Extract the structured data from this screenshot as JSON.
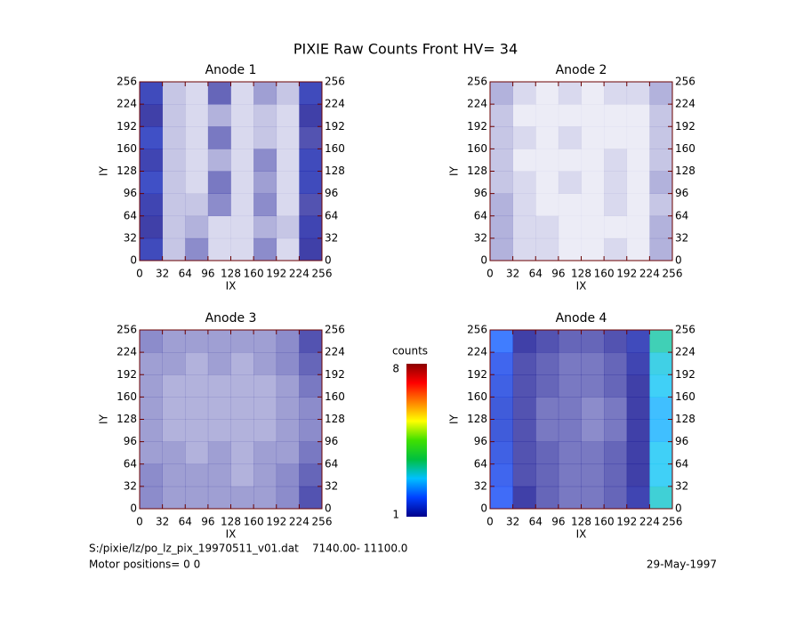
{
  "title": "PIXIE Raw Counts Front HV= 34",
  "footer": {
    "file": "S:/pixie/lz/po_lz_pix_19970511_v01.dat    7140.00- 11100.0",
    "motor": "Motor positions= 0 0",
    "date": "29-May-1997"
  },
  "colorbar": {
    "label": "counts",
    "lim": [
      1,
      8
    ],
    "ticks": [
      1,
      8
    ],
    "colors": [
      "#00008b",
      "#0040ff",
      "#00c0ff",
      "#00c040",
      "#40e000",
      "#ffff00",
      "#ff8000",
      "#ff0000",
      "#8b0000"
    ]
  },
  "chart_data": [
    {
      "type": "heatmap",
      "title": "Anode 1",
      "xlabel": "IX",
      "ylabel": "IY",
      "xlim": [
        0,
        256
      ],
      "ylim": [
        0,
        256
      ],
      "xticks": [
        0,
        32,
        64,
        96,
        128,
        160,
        192,
        224,
        256
      ],
      "yticks": [
        0,
        32,
        64,
        96,
        128,
        160,
        192,
        224,
        256
      ],
      "z": [
        [
          1.2,
          0.3,
          0.6,
          0.2,
          0.2,
          0.6,
          0.2,
          1.0
        ],
        [
          1.0,
          0.3,
          0.4,
          0.2,
          0.2,
          0.4,
          0.3,
          1.1
        ],
        [
          1.1,
          0.3,
          0.3,
          0.6,
          0.2,
          0.6,
          0.2,
          0.9
        ],
        [
          1.3,
          0.3,
          0.2,
          0.7,
          0.2,
          0.5,
          0.2,
          1.2
        ],
        [
          1.1,
          0.3,
          0.2,
          0.4,
          0.2,
          0.6,
          0.2,
          1.2
        ],
        [
          1.3,
          0.3,
          0.2,
          0.7,
          0.2,
          0.3,
          0.2,
          0.9
        ],
        [
          1.0,
          0.3,
          0.2,
          0.4,
          0.2,
          0.3,
          0.2,
          1.0
        ],
        [
          1.2,
          0.3,
          0.2,
          0.8,
          0.2,
          0.5,
          0.3,
          1.2
        ]
      ]
    },
    {
      "type": "heatmap",
      "title": "Anode 2",
      "xlabel": "IX",
      "ylabel": "IY",
      "xlim": [
        0,
        256
      ],
      "ylim": [
        0,
        256
      ],
      "xticks": [
        0,
        32,
        64,
        96,
        128,
        160,
        192,
        224,
        256
      ],
      "yticks": [
        0,
        32,
        64,
        96,
        128,
        160,
        192,
        224,
        256
      ],
      "z": [
        [
          0.4,
          0.2,
          0.2,
          0.1,
          0.1,
          0.2,
          0.1,
          0.4
        ],
        [
          0.4,
          0.2,
          0.2,
          0.1,
          0.1,
          0.1,
          0.1,
          0.4
        ],
        [
          0.4,
          0.2,
          0.1,
          0.1,
          0.1,
          0.2,
          0.1,
          0.3
        ],
        [
          0.3,
          0.2,
          0.1,
          0.2,
          0.1,
          0.2,
          0.1,
          0.4
        ],
        [
          0.3,
          0.1,
          0.1,
          0.1,
          0.1,
          0.2,
          0.1,
          0.3
        ],
        [
          0.3,
          0.2,
          0.1,
          0.2,
          0.1,
          0.1,
          0.1,
          0.3
        ],
        [
          0.3,
          0.1,
          0.1,
          0.1,
          0.1,
          0.1,
          0.1,
          0.3
        ],
        [
          0.4,
          0.2,
          0.1,
          0.2,
          0.1,
          0.2,
          0.2,
          0.4
        ]
      ]
    },
    {
      "type": "heatmap",
      "title": "Anode 3",
      "xlabel": "IX",
      "ylabel": "IY",
      "xlim": [
        0,
        256
      ],
      "ylim": [
        0,
        256
      ],
      "xticks": [
        0,
        32,
        64,
        96,
        128,
        160,
        192,
        224,
        256
      ],
      "yticks": [
        0,
        32,
        64,
        96,
        128,
        160,
        192,
        224,
        256
      ],
      "z": [
        [
          0.6,
          0.5,
          0.5,
          0.5,
          0.5,
          0.5,
          0.6,
          0.9
        ],
        [
          0.6,
          0.5,
          0.5,
          0.5,
          0.4,
          0.5,
          0.6,
          0.8
        ],
        [
          0.5,
          0.5,
          0.4,
          0.5,
          0.4,
          0.5,
          0.5,
          0.7
        ],
        [
          0.5,
          0.4,
          0.4,
          0.4,
          0.4,
          0.4,
          0.5,
          0.6
        ],
        [
          0.5,
          0.4,
          0.4,
          0.4,
          0.4,
          0.4,
          0.5,
          0.6
        ],
        [
          0.5,
          0.4,
          0.4,
          0.4,
          0.4,
          0.4,
          0.5,
          0.7
        ],
        [
          0.5,
          0.5,
          0.4,
          0.5,
          0.4,
          0.5,
          0.6,
          0.8
        ],
        [
          0.6,
          0.5,
          0.5,
          0.5,
          0.5,
          0.5,
          0.6,
          0.9
        ]
      ]
    },
    {
      "type": "heatmap",
      "title": "Anode 4",
      "xlabel": "IX",
      "ylabel": "IY",
      "xlim": [
        0,
        256
      ],
      "ylim": [
        0,
        256
      ],
      "xticks": [
        0,
        32,
        64,
        96,
        128,
        160,
        192,
        224,
        256
      ],
      "yticks": [
        0,
        32,
        64,
        96,
        128,
        160,
        192,
        224,
        256
      ],
      "z": [
        [
          1.8,
          1.0,
          0.8,
          0.7,
          0.7,
          0.8,
          1.1,
          3.0
        ],
        [
          1.7,
          0.9,
          0.8,
          0.7,
          0.7,
          0.8,
          1.0,
          2.8
        ],
        [
          1.6,
          0.9,
          0.8,
          0.7,
          0.7,
          0.8,
          1.0,
          2.8
        ],
        [
          1.5,
          0.9,
          0.7,
          0.7,
          0.6,
          0.7,
          1.0,
          2.6
        ],
        [
          1.5,
          0.9,
          0.7,
          0.7,
          0.6,
          0.7,
          1.0,
          2.6
        ],
        [
          1.6,
          0.9,
          0.8,
          0.7,
          0.7,
          0.8,
          1.0,
          2.8
        ],
        [
          1.7,
          0.9,
          0.8,
          0.7,
          0.7,
          0.8,
          1.1,
          2.9
        ],
        [
          2.0,
          1.0,
          0.9,
          0.8,
          0.8,
          0.9,
          1.2,
          3.2
        ]
      ]
    }
  ]
}
